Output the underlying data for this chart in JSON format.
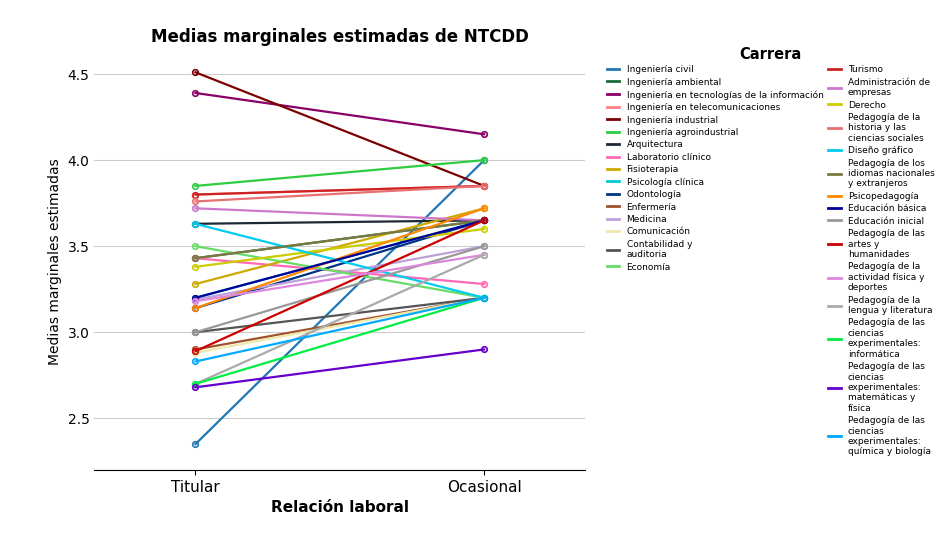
{
  "title": "Medias marginales estimadas de NTCDD",
  "xlabel": "Relación laboral",
  "ylabel": "Medias marginales estimadas",
  "legend_title": "Carrera",
  "xticks": [
    "Titular",
    "Ocasional"
  ],
  "ylim": [
    2.2,
    4.62
  ],
  "yticks": [
    2.5,
    3.0,
    3.5,
    4.0,
    4.5
  ],
  "series": [
    {
      "label": "Ingeniería civil",
      "color": "#1F77B4",
      "titular": 2.35,
      "ocasional": 4.0
    },
    {
      "label": "Ingeniería ambiental",
      "color": "#1A6B3A",
      "titular": 3.43,
      "ocasional": 3.65
    },
    {
      "label": "Ingeniería en tecnologías de la información",
      "color": "#8B0066",
      "titular": 4.39,
      "ocasional": 4.15
    },
    {
      "label": "Ingeniería en telecomunicaciones",
      "color": "#FF8080",
      "titular": 3.8,
      "ocasional": 3.85
    },
    {
      "label": "Ingeniería industrial",
      "color": "#7B0000",
      "titular": 4.51,
      "ocasional": 3.85
    },
    {
      "label": "Ingeniería agroindustrial",
      "color": "#2ECC40",
      "titular": 3.85,
      "ocasional": 4.0
    },
    {
      "label": "Arquitectura",
      "color": "#1C2833",
      "titular": 3.63,
      "ocasional": 3.65
    },
    {
      "label": "Laboratorio clínico",
      "color": "#FF69B4",
      "titular": 3.43,
      "ocasional": 3.28
    },
    {
      "label": "Fisioterapia",
      "color": "#CCAA00",
      "titular": 3.28,
      "ocasional": 3.72
    },
    {
      "label": "Psicología clínica",
      "color": "#00CCCC",
      "titular": 3.2,
      "ocasional": 3.65
    },
    {
      "label": "Odontología",
      "color": "#003385",
      "titular": 3.14,
      "ocasional": 3.65
    },
    {
      "label": "Enfermería",
      "color": "#A0522D",
      "titular": 2.9,
      "ocasional": 3.2
    },
    {
      "label": "Medicina",
      "color": "#BDA0D8",
      "titular": 3.19,
      "ocasional": 3.5
    },
    {
      "label": "Comunicación",
      "color": "#EEE8AA",
      "titular": 2.88,
      "ocasional": 3.2
    },
    {
      "label": "Contabilidad y\nauditoria",
      "color": "#555555",
      "titular": 3.0,
      "ocasional": 3.2
    },
    {
      "label": "Economía",
      "color": "#66DD66",
      "titular": 3.5,
      "ocasional": 3.2
    },
    {
      "label": "Turismo",
      "color": "#CC2222",
      "titular": 3.8,
      "ocasional": 3.85
    },
    {
      "label": "Administración de\nempresas",
      "color": "#CC77CC",
      "titular": 3.72,
      "ocasional": 3.65
    },
    {
      "label": "Derecho",
      "color": "#CCCC00",
      "titular": 3.38,
      "ocasional": 3.6
    },
    {
      "label": "Pedagogía de la\nhistoria y las\nciencias sociales",
      "color": "#E87070",
      "titular": 3.76,
      "ocasional": 3.85
    },
    {
      "label": "Diseño gráfico",
      "color": "#00CCEE",
      "titular": 3.63,
      "ocasional": 3.2
    },
    {
      "label": "Pedagogía de los\nidiomas nacionales\ny extranjeros",
      "color": "#7A7A40",
      "titular": 3.43,
      "ocasional": 3.65
    },
    {
      "label": "Psicopedagogía",
      "color": "#FF8800",
      "titular": 3.14,
      "ocasional": 3.72
    },
    {
      "label": "Educación básica",
      "color": "#000099",
      "titular": 3.2,
      "ocasional": 3.65
    },
    {
      "label": "Educación inicial",
      "color": "#999999",
      "titular": 3.0,
      "ocasional": 3.5
    },
    {
      "label": "Pedagogía de las\nartes y\nhumanidades",
      "color": "#CC0000",
      "titular": 2.89,
      "ocasional": 3.65
    },
    {
      "label": "Pedagogía de la\nactividad física y\ndeportes",
      "color": "#DD88DD",
      "titular": 3.18,
      "ocasional": 3.45
    },
    {
      "label": "Pedagogía de la\nlengua y literatura",
      "color": "#AAAAAA",
      "titular": 2.7,
      "ocasional": 3.45
    },
    {
      "label": "Pedagogía de las\nciencias\nexperimentales:\ninformática",
      "color": "#00EE44",
      "titular": 2.7,
      "ocasional": 3.2
    },
    {
      "label": "Pedagogía de las\nciencias\nexperimentales:\nmatemáticas y\nfísica",
      "color": "#6600CC",
      "titular": 2.68,
      "ocasional": 2.9
    },
    {
      "label": "Pedagogía de las\nciencias\nexperimentales:\nquímica y biología",
      "color": "#00AAFF",
      "titular": 2.83,
      "ocasional": 3.2
    }
  ]
}
